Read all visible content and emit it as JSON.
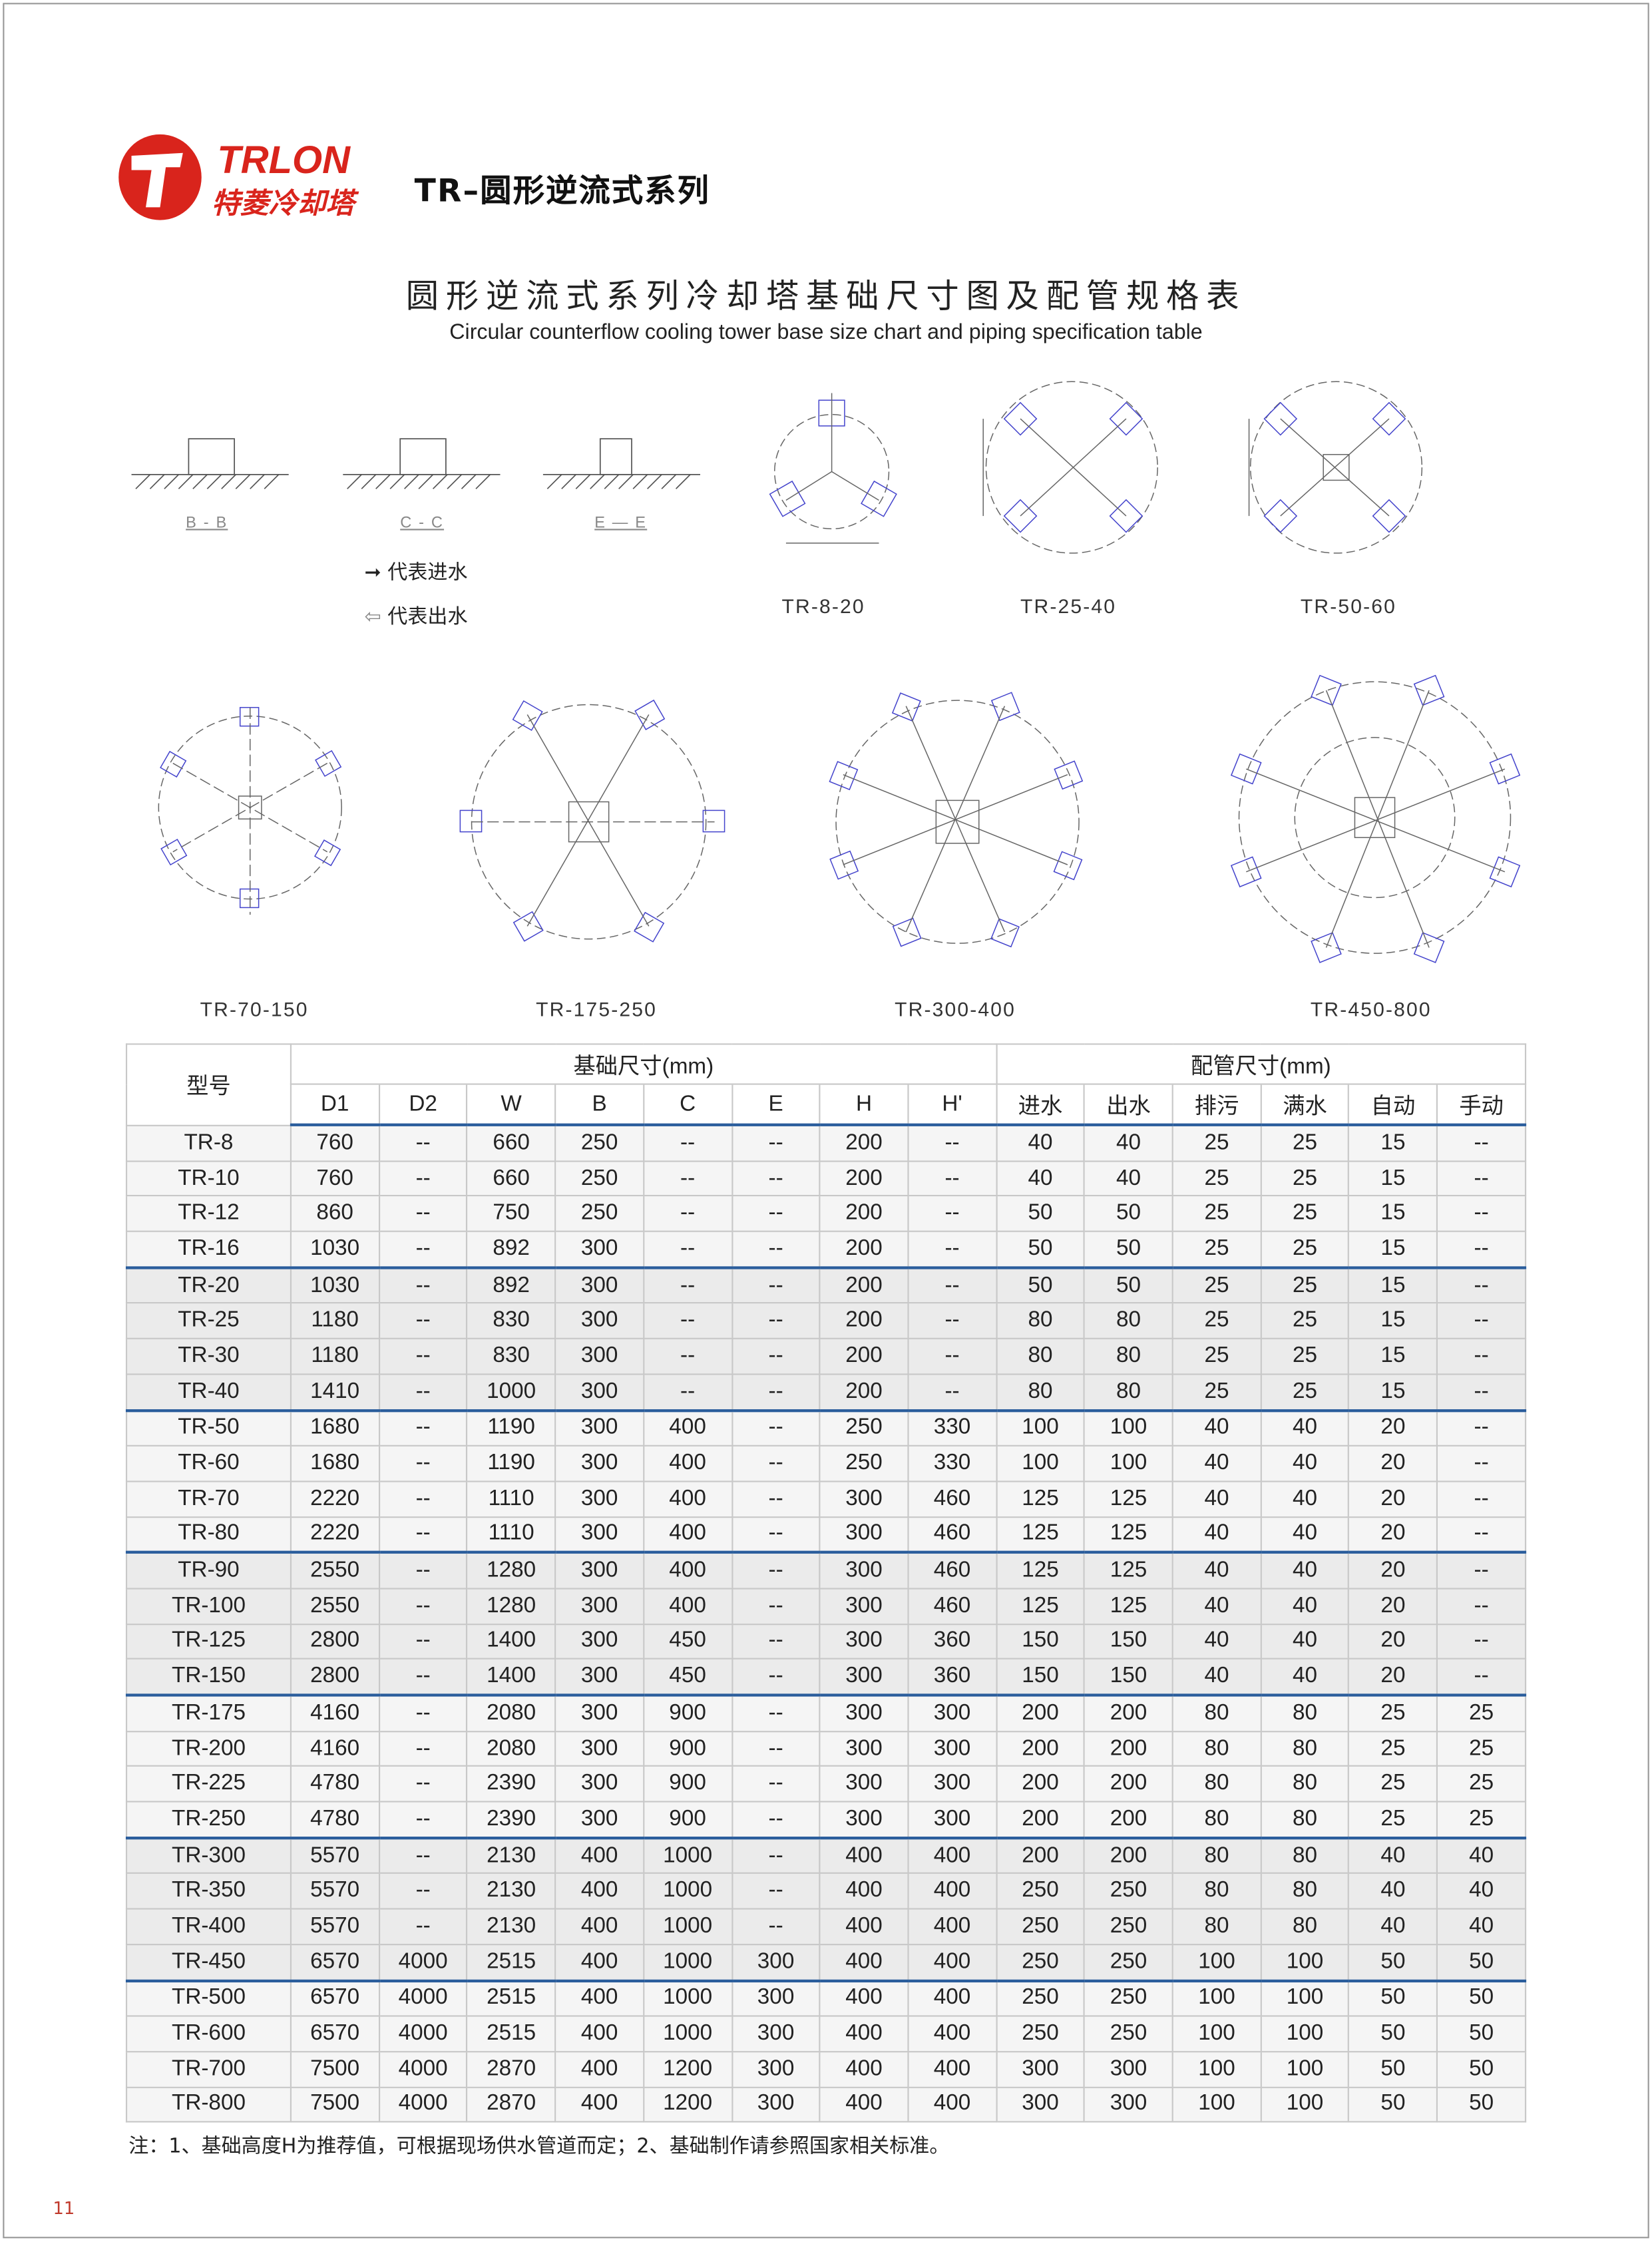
{
  "brand": {
    "name_en": "TRLON",
    "name_cn": "特菱冷却塔",
    "color": "#d9241c"
  },
  "header": {
    "series_title": "TR–圆形逆流式系列"
  },
  "titles": {
    "main": "圆形逆流式系列冷却塔基础尺寸图及配管规格表",
    "sub": "Circular counterflow cooling tower base size chart and piping specification table"
  },
  "sections": [
    "B - B",
    "C - C",
    "E — E"
  ],
  "legend": {
    "inlet": "代表进水",
    "outlet": "代表出水"
  },
  "diagrams": [
    "TR-8-20",
    "TR-25-40",
    "TR-50-60",
    "TR-70-150",
    "TR-175-250",
    "TR-300-400",
    "TR-450-800"
  ],
  "table": {
    "model_header": "型号",
    "base_header": "基础尺寸(mm)",
    "pipe_header": "配管尺寸(mm)",
    "columns": [
      "D1",
      "D2",
      "W",
      "B",
      "C",
      "E",
      "H",
      "H'",
      "进水",
      "出水",
      "排污",
      "满水",
      "自动",
      "手动"
    ],
    "rows": [
      [
        "TR-8",
        "760",
        "--",
        "660",
        "250",
        "--",
        "--",
        "200",
        "--",
        "40",
        "40",
        "25",
        "25",
        "15",
        "--"
      ],
      [
        "TR-10",
        "760",
        "--",
        "660",
        "250",
        "--",
        "--",
        "200",
        "--",
        "40",
        "40",
        "25",
        "25",
        "15",
        "--"
      ],
      [
        "TR-12",
        "860",
        "--",
        "750",
        "250",
        "--",
        "--",
        "200",
        "--",
        "50",
        "50",
        "25",
        "25",
        "15",
        "--"
      ],
      [
        "TR-16",
        "1030",
        "--",
        "892",
        "300",
        "--",
        "--",
        "200",
        "--",
        "50",
        "50",
        "25",
        "25",
        "15",
        "--"
      ],
      [
        "TR-20",
        "1030",
        "--",
        "892",
        "300",
        "--",
        "--",
        "200",
        "--",
        "50",
        "50",
        "25",
        "25",
        "15",
        "--"
      ],
      [
        "TR-25",
        "1180",
        "--",
        "830",
        "300",
        "--",
        "--",
        "200",
        "--",
        "80",
        "80",
        "25",
        "25",
        "15",
        "--"
      ],
      [
        "TR-30",
        "1180",
        "--",
        "830",
        "300",
        "--",
        "--",
        "200",
        "--",
        "80",
        "80",
        "25",
        "25",
        "15",
        "--"
      ],
      [
        "TR-40",
        "1410",
        "--",
        "1000",
        "300",
        "--",
        "--",
        "200",
        "--",
        "80",
        "80",
        "25",
        "25",
        "15",
        "--"
      ],
      [
        "TR-50",
        "1680",
        "--",
        "1190",
        "300",
        "400",
        "--",
        "250",
        "330",
        "100",
        "100",
        "40",
        "40",
        "20",
        "--"
      ],
      [
        "TR-60",
        "1680",
        "--",
        "1190",
        "300",
        "400",
        "--",
        "250",
        "330",
        "100",
        "100",
        "40",
        "40",
        "20",
        "--"
      ],
      [
        "TR-70",
        "2220",
        "--",
        "1110",
        "300",
        "400",
        "--",
        "300",
        "460",
        "125",
        "125",
        "40",
        "40",
        "20",
        "--"
      ],
      [
        "TR-80",
        "2220",
        "--",
        "1110",
        "300",
        "400",
        "--",
        "300",
        "460",
        "125",
        "125",
        "40",
        "40",
        "20",
        "--"
      ],
      [
        "TR-90",
        "2550",
        "--",
        "1280",
        "300",
        "400",
        "--",
        "300",
        "460",
        "125",
        "125",
        "40",
        "40",
        "20",
        "--"
      ],
      [
        "TR-100",
        "2550",
        "--",
        "1280",
        "300",
        "400",
        "--",
        "300",
        "460",
        "125",
        "125",
        "40",
        "40",
        "20",
        "--"
      ],
      [
        "TR-125",
        "2800",
        "--",
        "1400",
        "300",
        "450",
        "--",
        "300",
        "360",
        "150",
        "150",
        "40",
        "40",
        "20",
        "--"
      ],
      [
        "TR-150",
        "2800",
        "--",
        "1400",
        "300",
        "450",
        "--",
        "300",
        "360",
        "150",
        "150",
        "40",
        "40",
        "20",
        "--"
      ],
      [
        "TR-175",
        "4160",
        "--",
        "2080",
        "300",
        "900",
        "--",
        "300",
        "300",
        "200",
        "200",
        "80",
        "80",
        "25",
        "25"
      ],
      [
        "TR-200",
        "4160",
        "--",
        "2080",
        "300",
        "900",
        "--",
        "300",
        "300",
        "200",
        "200",
        "80",
        "80",
        "25",
        "25"
      ],
      [
        "TR-225",
        "4780",
        "--",
        "2390",
        "300",
        "900",
        "--",
        "300",
        "300",
        "200",
        "200",
        "80",
        "80",
        "25",
        "25"
      ],
      [
        "TR-250",
        "4780",
        "--",
        "2390",
        "300",
        "900",
        "--",
        "300",
        "300",
        "200",
        "200",
        "80",
        "80",
        "25",
        "25"
      ],
      [
        "TR-300",
        "5570",
        "--",
        "2130",
        "400",
        "1000",
        "--",
        "400",
        "400",
        "200",
        "200",
        "80",
        "80",
        "40",
        "40"
      ],
      [
        "TR-350",
        "5570",
        "--",
        "2130",
        "400",
        "1000",
        "--",
        "400",
        "400",
        "250",
        "250",
        "80",
        "80",
        "40",
        "40"
      ],
      [
        "TR-400",
        "5570",
        "--",
        "2130",
        "400",
        "1000",
        "--",
        "400",
        "400",
        "250",
        "250",
        "80",
        "80",
        "40",
        "40"
      ],
      [
        "TR-450",
        "6570",
        "4000",
        "2515",
        "400",
        "1000",
        "300",
        "400",
        "400",
        "250",
        "250",
        "100",
        "100",
        "50",
        "50"
      ],
      [
        "TR-500",
        "6570",
        "4000",
        "2515",
        "400",
        "1000",
        "300",
        "400",
        "400",
        "250",
        "250",
        "100",
        "100",
        "50",
        "50"
      ],
      [
        "TR-600",
        "6570",
        "4000",
        "2515",
        "400",
        "1000",
        "300",
        "400",
        "400",
        "250",
        "250",
        "100",
        "100",
        "50",
        "50"
      ],
      [
        "TR-700",
        "7500",
        "4000",
        "2870",
        "400",
        "1200",
        "300",
        "400",
        "400",
        "300",
        "300",
        "100",
        "100",
        "50",
        "50"
      ],
      [
        "TR-800",
        "7500",
        "4000",
        "2870",
        "400",
        "1200",
        "300",
        "400",
        "400",
        "300",
        "300",
        "100",
        "100",
        "50",
        "50"
      ]
    ]
  },
  "note": "注：1、基础高度H为推荐值，可根据现场供水管道而定；2、基础制作请参照国家相关标准。",
  "page_number": "11"
}
